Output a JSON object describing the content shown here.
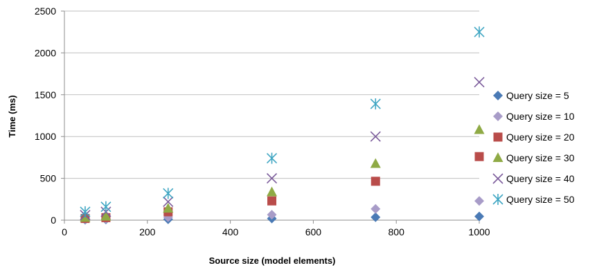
{
  "chart_data": {
    "type": "scatter",
    "xlabel": "Source size (model elements)",
    "ylabel": "Time (ms)",
    "xlim": [
      0,
      1000
    ],
    "ylim": [
      0,
      2500
    ],
    "xticks": [
      0,
      200,
      400,
      600,
      800,
      1000
    ],
    "yticks": [
      0,
      500,
      1000,
      1500,
      2000,
      2500
    ],
    "grid": "horizontal",
    "legend_position": "right",
    "series": [
      {
        "name": "Query size = 5",
        "marker": "diamond",
        "color": "#4a7ab5",
        "x": [
          50,
          100,
          250,
          500,
          750,
          1000
        ],
        "y": [
          5,
          8,
          10,
          20,
          35,
          45
        ]
      },
      {
        "name": "Query size = 10",
        "marker": "diamond",
        "color": "#a89cc8",
        "x": [
          50,
          100,
          250,
          500,
          750,
          1000
        ],
        "y": [
          10,
          15,
          35,
          65,
          135,
          230
        ]
      },
      {
        "name": "Query size = 20",
        "marker": "square",
        "color": "#b94c4a",
        "x": [
          50,
          100,
          250,
          500,
          750,
          1000
        ],
        "y": [
          20,
          30,
          100,
          230,
          465,
          760
        ]
      },
      {
        "name": "Query size = 30",
        "marker": "triangle",
        "color": "#8faa45",
        "x": [
          50,
          100,
          250,
          500,
          750,
          1000
        ],
        "y": [
          30,
          45,
          140,
          335,
          675,
          1080
        ]
      },
      {
        "name": "Query size = 40",
        "marker": "x",
        "color": "#7a5a9a",
        "x": [
          50,
          100,
          250,
          500,
          750,
          1000
        ],
        "y": [
          60,
          100,
          220,
          500,
          1000,
          1650
        ]
      },
      {
        "name": "Query size = 50",
        "marker": "star",
        "color": "#3da5c2",
        "x": [
          50,
          100,
          250,
          500,
          750,
          1000
        ],
        "y": [
          100,
          160,
          320,
          740,
          1390,
          2250
        ]
      }
    ]
  }
}
